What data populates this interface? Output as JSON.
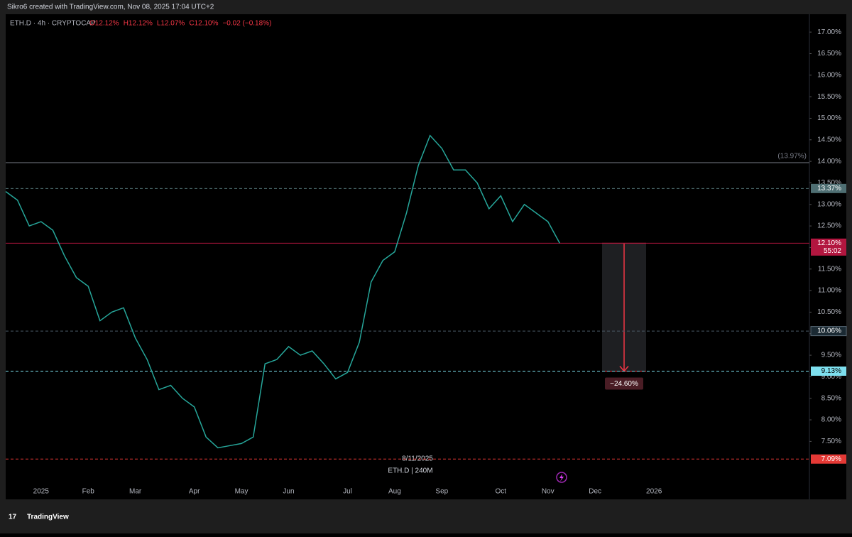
{
  "chart_data": {
    "type": "line",
    "title": "Sikro6 created with TradingView.com, Nov 08, 2025 17:04 UTC+2",
    "subtitle": "ETH.D · 4h · CRYPTOCAP",
    "ohlc_labels": [
      "O12.12%",
      "H12.12%",
      "L12.07%",
      "C12.10%",
      "−0.02 (−0.18%)"
    ],
    "categories": [
      null,
      null,
      null,
      "2025",
      null,
      null,
      null,
      "Feb",
      null,
      null,
      null,
      "Mar",
      null,
      null,
      null,
      null,
      "Apr",
      null,
      null,
      null,
      "May",
      null,
      null,
      null,
      "Jun",
      null,
      null,
      null,
      null,
      "Jul",
      null,
      null,
      null,
      "Aug",
      null,
      null,
      null,
      "Sep",
      null,
      null,
      null,
      null,
      "Oct",
      null,
      null,
      null,
      "Nov",
      null,
      null,
      null,
      "Dec",
      null,
      null,
      null,
      null,
      "2026",
      null,
      null,
      null,
      null,
      null,
      null,
      null,
      null,
      null,
      null,
      null,
      null,
      null
    ],
    "series": [
      {
        "name": "ETH.D",
        "color": "#26a69a",
        "values": [
          13.3,
          13.1,
          12.5,
          12.6,
          12.4,
          11.8,
          11.3,
          11.1,
          10.3,
          10.5,
          10.6,
          9.9,
          9.4,
          8.7,
          8.8,
          8.5,
          8.3,
          7.6,
          7.35,
          7.4,
          7.45,
          7.6,
          9.3,
          9.4,
          9.7,
          9.5,
          9.6,
          9.3,
          8.95,
          9.1,
          9.8,
          11.2,
          11.7,
          11.9,
          12.8,
          13.9,
          14.6,
          14.3,
          13.8,
          13.8,
          13.5,
          12.9,
          13.2,
          12.6,
          13.0,
          12.8,
          12.6,
          12.1,
          null,
          null,
          null,
          null,
          null,
          null,
          null,
          null,
          null,
          null,
          null,
          null,
          null,
          null,
          null,
          null,
          null,
          null,
          null,
          null,
          null
        ]
      }
    ],
    "ylim": [
      6.55,
      17.25
    ],
    "yticks": [
      {
        "value": 7.5,
        "label": "7.50%"
      },
      {
        "value": 8,
        "label": "8.00%"
      },
      {
        "value": 8.5,
        "label": "8.50%"
      },
      {
        "value": 9,
        "label": "9.00%"
      },
      {
        "value": 9.5,
        "label": "9.50%"
      },
      {
        "value": 10,
        "label": "10.00%"
      },
      {
        "value": 10.5,
        "label": "10.50%"
      },
      {
        "value": 11,
        "label": "11.00%"
      },
      {
        "value": 11.5,
        "label": "11.50%"
      },
      {
        "value": 12,
        "label": "12.00%"
      },
      {
        "value": 12.5,
        "label": "12.50%"
      },
      {
        "value": 13,
        "label": "13.00%"
      },
      {
        "value": 13.5,
        "label": "13.50%"
      },
      {
        "value": 14,
        "label": "14.00%"
      },
      {
        "value": 14.5,
        "label": "14.50%"
      },
      {
        "value": 15,
        "label": "15.00%"
      },
      {
        "value": 15.5,
        "label": "15.50%"
      },
      {
        "value": 16,
        "label": "16.00%"
      },
      {
        "value": 16.5,
        "label": "16.50%"
      },
      {
        "value": 17,
        "label": "17.00%"
      }
    ],
    "levels": [
      {
        "value": 13.97,
        "label": "(13.97%)",
        "color": "#787b86",
        "style": "solid"
      },
      {
        "value": 13.37,
        "label": "13.37%",
        "color": "#4f6f73",
        "style": "dashed"
      },
      {
        "value": 12.1,
        "label": "12.10%",
        "color": "#b2163f",
        "style": "solid",
        "countdown": "55:02"
      },
      {
        "value": 10.06,
        "label": "10.06%",
        "color": "#1b2a33",
        "style": "dashed"
      },
      {
        "value": 9.13,
        "label": "9.13%",
        "color": "#7ee0ef",
        "style": "dashed"
      },
      {
        "value": 7.09,
        "label": "7.09%",
        "color": "#e53935",
        "style": "dashed"
      }
    ],
    "measure": {
      "from": 12.1,
      "to": 9.13,
      "label": "−24.60%"
    },
    "annotations": [
      "8/11/2025",
      "ETH.D | 240M"
    ],
    "footer": "TradingView"
  }
}
